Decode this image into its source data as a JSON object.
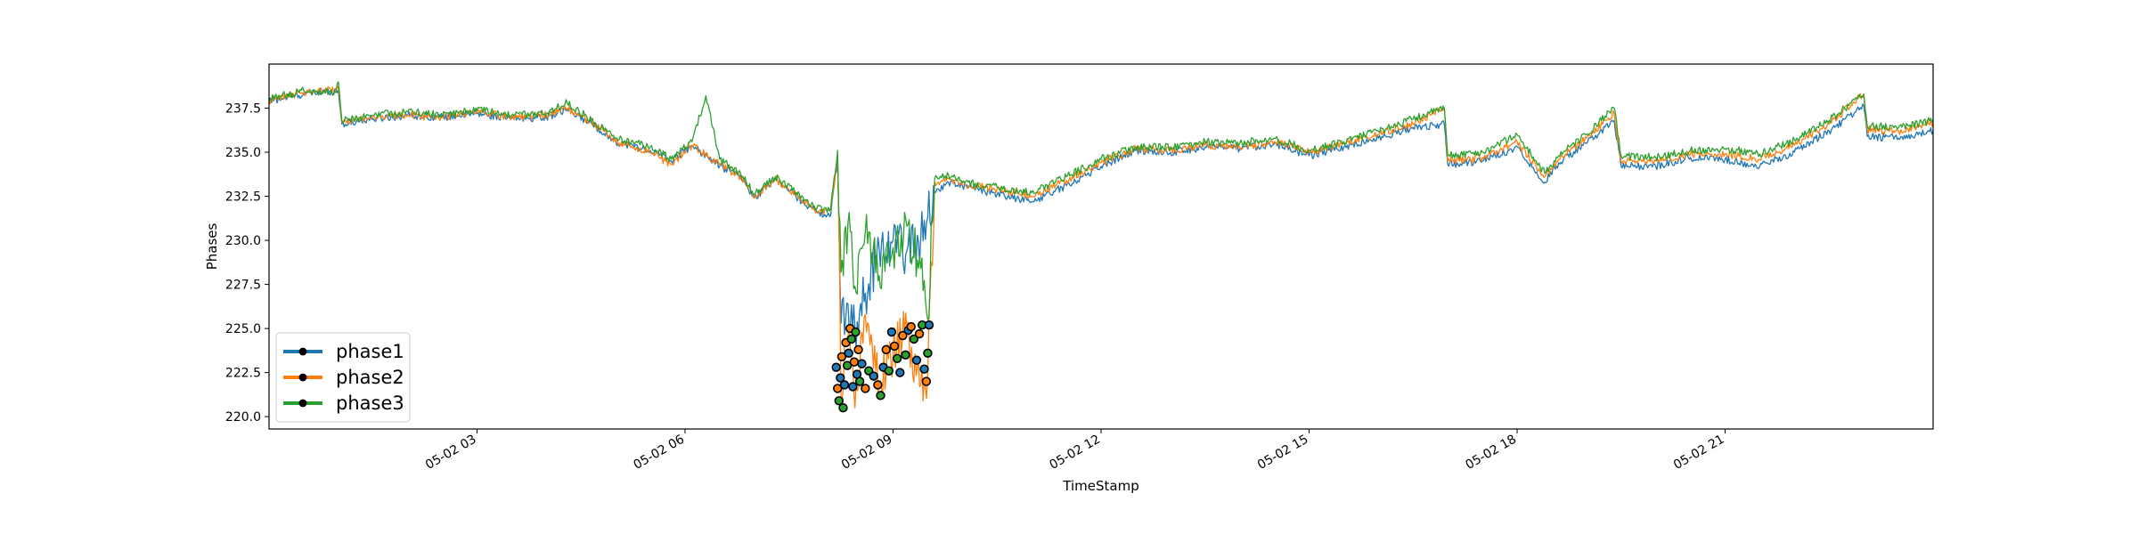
{
  "chart_data": {
    "type": "line",
    "title": "",
    "xlabel": "TimeStamp",
    "ylabel": "Phases",
    "x_ticks": [
      "05-02 03",
      "05-02 06",
      "05-02 09",
      "05-02 12",
      "05-02 15",
      "05-02 18",
      "05-02 21"
    ],
    "x_tick_hours": [
      3,
      6,
      9,
      12,
      15,
      18,
      21
    ],
    "x_range_hours": [
      0,
      24
    ],
    "y_ticks": [
      "220.0",
      "222.5",
      "225.0",
      "227.5",
      "230.0",
      "232.5",
      "235.0",
      "237.5"
    ],
    "ylim": [
      219.3,
      240.0
    ],
    "grid": false,
    "legend_position": "lower left",
    "series": [
      {
        "name": "phase1",
        "color": "#1f77b4",
        "x_hours": [
          0.0,
          0.5,
          1.0,
          1.05,
          1.5,
          2.0,
          2.5,
          3.0,
          3.5,
          4.0,
          4.3,
          4.7,
          5.0,
          5.5,
          5.8,
          6.1,
          6.5,
          6.8,
          7.0,
          7.3,
          7.6,
          7.9,
          8.1,
          8.2,
          8.25,
          8.35,
          8.45,
          8.6,
          8.8,
          9.0,
          9.2,
          9.4,
          9.5,
          9.6,
          9.8,
          10.0,
          10.5,
          11.0,
          11.5,
          12.0,
          12.5,
          13.0,
          13.5,
          14.0,
          14.5,
          15.0,
          15.5,
          16.0,
          16.5,
          16.95,
          17.0,
          17.5,
          18.0,
          18.4,
          18.6,
          19.0,
          19.4,
          19.5,
          20.0,
          20.5,
          21.0,
          21.5,
          22.0,
          22.5,
          23.0,
          23.05,
          23.5,
          24.0
        ],
        "values": [
          237.9,
          238.3,
          238.5,
          236.6,
          236.9,
          237.1,
          237.0,
          237.2,
          236.9,
          237.0,
          237.4,
          236.5,
          235.6,
          235.1,
          234.5,
          235.4,
          234.2,
          233.7,
          232.4,
          233.5,
          232.5,
          231.6,
          231.4,
          234.6,
          225.3,
          226.4,
          225.0,
          227.0,
          229.5,
          230.0,
          229.4,
          230.2,
          231.3,
          232.7,
          233.3,
          233.1,
          232.6,
          232.2,
          233.1,
          234.2,
          235.1,
          235.0,
          235.3,
          235.2,
          235.5,
          234.8,
          235.3,
          235.8,
          236.4,
          236.6,
          234.3,
          234.5,
          235.3,
          233.3,
          234.4,
          235.5,
          236.8,
          234.2,
          234.2,
          234.7,
          234.6,
          234.2,
          235.0,
          236.2,
          237.6,
          235.9,
          235.8,
          236.2
        ]
      },
      {
        "name": "phase2",
        "color": "#ff7f0e",
        "x_hours": [
          0.0,
          0.5,
          1.0,
          1.05,
          1.5,
          2.0,
          2.5,
          3.0,
          3.5,
          4.0,
          4.3,
          4.7,
          5.0,
          5.5,
          5.8,
          6.1,
          6.5,
          6.8,
          7.0,
          7.3,
          7.6,
          7.9,
          8.1,
          8.2,
          8.25,
          8.35,
          8.45,
          8.6,
          8.8,
          9.0,
          9.2,
          9.4,
          9.5,
          9.6,
          9.8,
          10.0,
          10.5,
          11.0,
          11.5,
          12.0,
          12.5,
          13.0,
          13.5,
          14.0,
          14.5,
          15.0,
          15.5,
          16.0,
          16.5,
          16.95,
          17.0,
          17.5,
          18.0,
          18.4,
          18.6,
          19.0,
          19.4,
          19.5,
          20.0,
          20.5,
          21.0,
          21.5,
          22.0,
          22.5,
          23.0,
          23.05,
          23.5,
          24.0
        ],
        "values": [
          237.9,
          238.4,
          238.6,
          236.7,
          237.0,
          237.1,
          237.0,
          237.3,
          237.0,
          237.1,
          237.5,
          236.6,
          235.6,
          235.0,
          234.3,
          235.4,
          234.3,
          233.6,
          232.4,
          233.5,
          232.6,
          231.6,
          231.7,
          234.7,
          220.8,
          224.6,
          220.5,
          225.8,
          222.0,
          223.6,
          224.9,
          221.8,
          222.5,
          233.3,
          233.5,
          233.2,
          232.9,
          232.5,
          233.4,
          234.4,
          235.2,
          235.1,
          235.4,
          235.3,
          235.6,
          235.0,
          235.5,
          236.0,
          236.6,
          237.5,
          234.5,
          234.7,
          235.6,
          233.6,
          234.6,
          235.8,
          237.2,
          234.5,
          234.5,
          234.9,
          234.9,
          234.6,
          235.4,
          236.6,
          238.3,
          236.3,
          236.2,
          236.7
        ]
      },
      {
        "name": "phase3",
        "color": "#2ca02c",
        "x_hours": [
          0.0,
          0.5,
          0.95,
          1.0,
          1.05,
          1.5,
          2.0,
          2.5,
          3.0,
          3.5,
          4.0,
          4.3,
          4.7,
          5.0,
          5.5,
          5.8,
          6.1,
          6.3,
          6.5,
          6.8,
          7.0,
          7.3,
          7.6,
          7.9,
          8.1,
          8.2,
          8.25,
          8.35,
          8.45,
          8.6,
          8.8,
          9.0,
          9.2,
          9.4,
          9.5,
          9.6,
          9.8,
          10.0,
          10.5,
          11.0,
          11.5,
          12.0,
          12.5,
          13.0,
          13.5,
          14.0,
          14.5,
          15.0,
          15.5,
          16.0,
          16.5,
          16.95,
          17.0,
          17.5,
          18.0,
          18.4,
          18.6,
          19.0,
          19.4,
          19.5,
          20.0,
          20.5,
          21.0,
          21.5,
          22.0,
          22.5,
          23.0,
          23.05,
          23.5,
          24.0
        ],
        "values": [
          238.0,
          238.5,
          238.4,
          239.0,
          236.8,
          237.1,
          237.3,
          237.1,
          237.4,
          237.1,
          237.2,
          237.8,
          236.7,
          235.8,
          235.3,
          234.6,
          235.6,
          238.2,
          234.6,
          233.8,
          232.6,
          233.6,
          232.7,
          231.8,
          231.8,
          235.1,
          228.2,
          231.0,
          227.4,
          230.5,
          228.0,
          229.6,
          230.8,
          228.4,
          225.5,
          233.5,
          233.7,
          233.3,
          233.0,
          232.7,
          233.6,
          234.6,
          235.3,
          235.3,
          235.6,
          235.5,
          235.8,
          235.1,
          235.6,
          236.2,
          236.9,
          237.5,
          234.8,
          235.0,
          236.0,
          233.8,
          234.8,
          236.0,
          237.5,
          234.8,
          234.7,
          235.1,
          235.2,
          234.9,
          235.7,
          236.8,
          238.3,
          236.5,
          236.4,
          236.8
        ]
      }
    ],
    "markers": {
      "edge_color": "#000000",
      "x_hours": [
        8.18,
        8.2,
        8.22,
        8.24,
        8.26,
        8.28,
        8.3,
        8.32,
        8.34,
        8.36,
        8.38,
        8.4,
        8.42,
        8.44,
        8.46,
        8.48,
        8.5,
        8.52,
        8.55,
        8.6,
        8.65,
        8.72,
        8.78,
        8.82,
        8.86,
        8.9,
        8.94,
        8.98,
        9.02,
        9.06,
        9.1,
        9.14,
        9.18,
        9.22,
        9.26,
        9.3,
        9.34,
        9.38,
        9.42,
        9.45,
        9.48,
        9.5,
        9.52
      ],
      "values": [
        222.8,
        221.6,
        220.9,
        222.2,
        223.4,
        220.5,
        221.8,
        224.2,
        222.9,
        223.6,
        225.0,
        224.4,
        221.7,
        223.1,
        224.8,
        222.4,
        223.8,
        222.0,
        223.0,
        221.6,
        222.6,
        222.3,
        221.8,
        221.2,
        222.8,
        223.8,
        222.6,
        224.8,
        224.0,
        223.3,
        222.5,
        224.6,
        223.5,
        224.9,
        225.1,
        224.4,
        223.2,
        224.7,
        225.2,
        222.7,
        222.0,
        223.6,
        225.2
      ]
    }
  },
  "legend": {
    "items": [
      {
        "label": "phase1",
        "color": "#1f77b4"
      },
      {
        "label": "phase2",
        "color": "#ff7f0e"
      },
      {
        "label": "phase3",
        "color": "#2ca02c"
      }
    ]
  }
}
